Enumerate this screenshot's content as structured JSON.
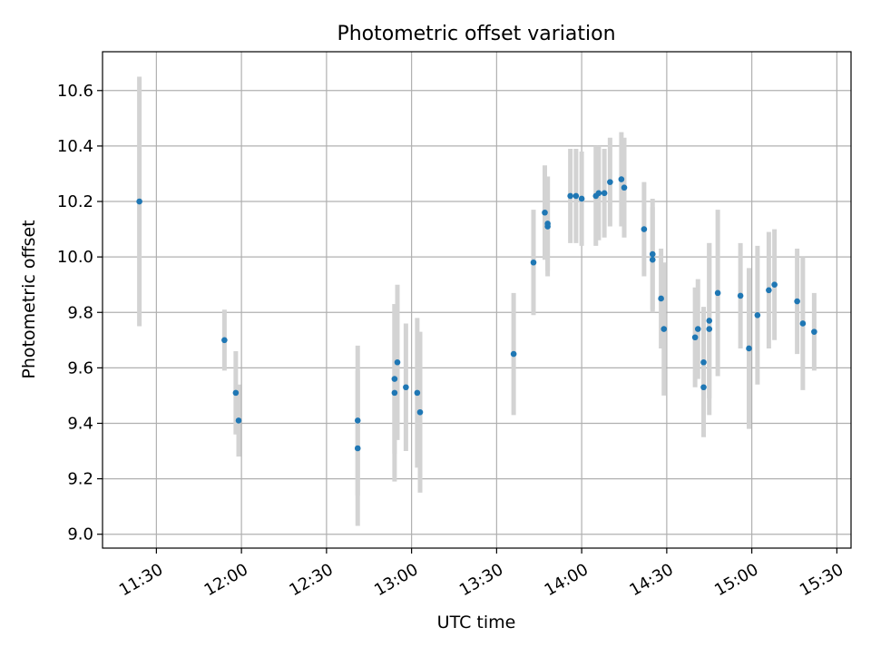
{
  "chart_data": {
    "type": "scatter",
    "title": "Photometric offset variation",
    "xlabel": "UTC time",
    "ylabel": "Photometric offset",
    "x_ticks": [
      "11:30",
      "12:00",
      "12:30",
      "13:00",
      "13:30",
      "14:00",
      "14:30",
      "15:00",
      "15:30"
    ],
    "y_ticks": [
      "9.0",
      "9.2",
      "9.4",
      "9.6",
      "9.8",
      "10.0",
      "10.2",
      "10.4",
      "10.6"
    ],
    "xlim": [
      "11:11",
      "15:35"
    ],
    "ylim": [
      8.95,
      10.74
    ],
    "grid": true,
    "marker_color": "#1f77b4",
    "errorbar_color": "#d3d3d3",
    "points": [
      {
        "t": "11:24",
        "y": 10.2,
        "err": 0.45
      },
      {
        "t": "11:54",
        "y": 9.7,
        "err": 0.11
      },
      {
        "t": "11:58",
        "y": 9.51,
        "err": 0.15
      },
      {
        "t": "11:59",
        "y": 9.41,
        "err": 0.13
      },
      {
        "t": "12:41",
        "y": 9.41,
        "err": 0.27
      },
      {
        "t": "12:41",
        "y": 9.31,
        "err": 0.28
      },
      {
        "t": "12:54",
        "y": 9.51,
        "err": 0.32
      },
      {
        "t": "12:54",
        "y": 9.56,
        "err": 0.27
      },
      {
        "t": "12:55",
        "y": 9.62,
        "err": 0.28
      },
      {
        "t": "12:58",
        "y": 9.53,
        "err": 0.23
      },
      {
        "t": "13:02",
        "y": 9.51,
        "err": 0.27
      },
      {
        "t": "13:03",
        "y": 9.44,
        "err": 0.29
      },
      {
        "t": "13:36",
        "y": 9.65,
        "err": 0.22
      },
      {
        "t": "13:43",
        "y": 9.98,
        "err": 0.19
      },
      {
        "t": "13:47",
        "y": 10.16,
        "err": 0.17
      },
      {
        "t": "13:48",
        "y": 10.11,
        "err": 0.18
      },
      {
        "t": "13:48",
        "y": 10.12,
        "err": 0.17
      },
      {
        "t": "13:56",
        "y": 10.22,
        "err": 0.17
      },
      {
        "t": "13:58",
        "y": 10.22,
        "err": 0.17
      },
      {
        "t": "14:00",
        "y": 10.21,
        "err": 0.17
      },
      {
        "t": "14:05",
        "y": 10.22,
        "err": 0.18
      },
      {
        "t": "14:06",
        "y": 10.23,
        "err": 0.17
      },
      {
        "t": "14:08",
        "y": 10.23,
        "err": 0.16
      },
      {
        "t": "14:10",
        "y": 10.27,
        "err": 0.16
      },
      {
        "t": "14:14",
        "y": 10.28,
        "err": 0.17
      },
      {
        "t": "14:15",
        "y": 10.25,
        "err": 0.18
      },
      {
        "t": "14:22",
        "y": 10.1,
        "err": 0.17
      },
      {
        "t": "14:25",
        "y": 10.01,
        "err": 0.2
      },
      {
        "t": "14:25",
        "y": 9.99,
        "err": 0.19
      },
      {
        "t": "14:28",
        "y": 9.85,
        "err": 0.18
      },
      {
        "t": "14:29",
        "y": 9.74,
        "err": 0.24
      },
      {
        "t": "14:40",
        "y": 9.71,
        "err": 0.18
      },
      {
        "t": "14:41",
        "y": 9.74,
        "err": 0.18
      },
      {
        "t": "14:43",
        "y": 9.62,
        "err": 0.2
      },
      {
        "t": "14:43",
        "y": 9.53,
        "err": 0.18
      },
      {
        "t": "14:45",
        "y": 9.77,
        "err": 0.28
      },
      {
        "t": "14:45",
        "y": 9.74,
        "err": 0.31
      },
      {
        "t": "14:48",
        "y": 9.87,
        "err": 0.3
      },
      {
        "t": "14:56",
        "y": 9.86,
        "err": 0.19
      },
      {
        "t": "14:59",
        "y": 9.67,
        "err": 0.29
      },
      {
        "t": "15:02",
        "y": 9.79,
        "err": 0.25
      },
      {
        "t": "15:06",
        "y": 9.88,
        "err": 0.21
      },
      {
        "t": "15:08",
        "y": 9.9,
        "err": 0.2
      },
      {
        "t": "15:16",
        "y": 9.84,
        "err": 0.19
      },
      {
        "t": "15:18",
        "y": 9.76,
        "err": 0.24
      },
      {
        "t": "15:22",
        "y": 9.73,
        "err": 0.14
      }
    ]
  }
}
